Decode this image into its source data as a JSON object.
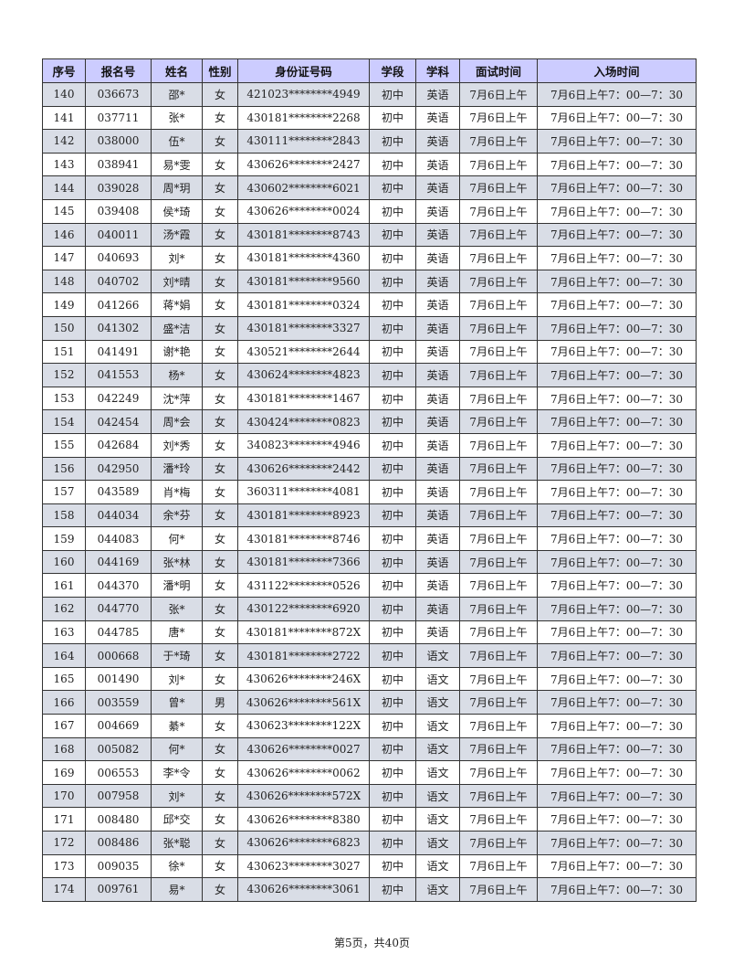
{
  "table": {
    "headers": [
      "序号",
      "报名号",
      "姓名",
      "性别",
      "身份证号码",
      "学段",
      "学科",
      "面试时间",
      "入场时间"
    ],
    "rows": [
      [
        "140",
        "036673",
        "邵*",
        "女",
        "421023********4949",
        "初中",
        "英语",
        "7月6日上午",
        "7月6日上午7：00—7：30"
      ],
      [
        "141",
        "037711",
        "张*",
        "女",
        "430181********2268",
        "初中",
        "英语",
        "7月6日上午",
        "7月6日上午7：00—7：30"
      ],
      [
        "142",
        "038000",
        "伍*",
        "女",
        "430111********2843",
        "初中",
        "英语",
        "7月6日上午",
        "7月6日上午7：00—7：30"
      ],
      [
        "143",
        "038941",
        "易*雯",
        "女",
        "430626********2427",
        "初中",
        "英语",
        "7月6日上午",
        "7月6日上午7：00—7：30"
      ],
      [
        "144",
        "039028",
        "周*玥",
        "女",
        "430602********6021",
        "初中",
        "英语",
        "7月6日上午",
        "7月6日上午7：00—7：30"
      ],
      [
        "145",
        "039408",
        "侯*琦",
        "女",
        "430626********0024",
        "初中",
        "英语",
        "7月6日上午",
        "7月6日上午7：00—7：30"
      ],
      [
        "146",
        "040011",
        "汤*霞",
        "女",
        "430181********8743",
        "初中",
        "英语",
        "7月6日上午",
        "7月6日上午7：00—7：30"
      ],
      [
        "147",
        "040693",
        "刘*",
        "女",
        "430181********4360",
        "初中",
        "英语",
        "7月6日上午",
        "7月6日上午7：00—7：30"
      ],
      [
        "148",
        "040702",
        "刘*晴",
        "女",
        "430181********9560",
        "初中",
        "英语",
        "7月6日上午",
        "7月6日上午7：00—7：30"
      ],
      [
        "149",
        "041266",
        "蒋*娟",
        "女",
        "430181********0324",
        "初中",
        "英语",
        "7月6日上午",
        "7月6日上午7：00—7：30"
      ],
      [
        "150",
        "041302",
        "盛*洁",
        "女",
        "430181********3327",
        "初中",
        "英语",
        "7月6日上午",
        "7月6日上午7：00—7：30"
      ],
      [
        "151",
        "041491",
        "谢*艳",
        "女",
        "430521********2644",
        "初中",
        "英语",
        "7月6日上午",
        "7月6日上午7：00—7：30"
      ],
      [
        "152",
        "041553",
        "杨*",
        "女",
        "430624********4823",
        "初中",
        "英语",
        "7月6日上午",
        "7月6日上午7：00—7：30"
      ],
      [
        "153",
        "042249",
        "沈*萍",
        "女",
        "430181********1467",
        "初中",
        "英语",
        "7月6日上午",
        "7月6日上午7：00—7：30"
      ],
      [
        "154",
        "042454",
        "周*会",
        "女",
        "430424********0823",
        "初中",
        "英语",
        "7月6日上午",
        "7月6日上午7：00—7：30"
      ],
      [
        "155",
        "042684",
        "刘*秀",
        "女",
        "340823********4946",
        "初中",
        "英语",
        "7月6日上午",
        "7月6日上午7：00—7：30"
      ],
      [
        "156",
        "042950",
        "潘*玲",
        "女",
        "430626********2442",
        "初中",
        "英语",
        "7月6日上午",
        "7月6日上午7：00—7：30"
      ],
      [
        "157",
        "043589",
        "肖*梅",
        "女",
        "360311********4081",
        "初中",
        "英语",
        "7月6日上午",
        "7月6日上午7：00—7：30"
      ],
      [
        "158",
        "044034",
        "余*芬",
        "女",
        "430181********8923",
        "初中",
        "英语",
        "7月6日上午",
        "7月6日上午7：00—7：30"
      ],
      [
        "159",
        "044083",
        "何*",
        "女",
        "430181********8746",
        "初中",
        "英语",
        "7月6日上午",
        "7月6日上午7：00—7：30"
      ],
      [
        "160",
        "044169",
        "张*林",
        "女",
        "430181********7366",
        "初中",
        "英语",
        "7月6日上午",
        "7月6日上午7：00—7：30"
      ],
      [
        "161",
        "044370",
        "潘*明",
        "女",
        "431122********0526",
        "初中",
        "英语",
        "7月6日上午",
        "7月6日上午7：00—7：30"
      ],
      [
        "162",
        "044770",
        "张*",
        "女",
        "430122********6920",
        "初中",
        "英语",
        "7月6日上午",
        "7月6日上午7：00—7：30"
      ],
      [
        "163",
        "044785",
        "唐*",
        "女",
        "430181********872X",
        "初中",
        "英语",
        "7月6日上午",
        "7月6日上午7：00—7：30"
      ],
      [
        "164",
        "000668",
        "于*琦",
        "女",
        "430181********2722",
        "初中",
        "语文",
        "7月6日上午",
        "7月6日上午7：00—7：30"
      ],
      [
        "165",
        "001490",
        "刘*",
        "女",
        "430626********246X",
        "初中",
        "语文",
        "7月6日上午",
        "7月6日上午7：00—7：30"
      ],
      [
        "166",
        "003559",
        "曾*",
        "男",
        "430626********561X",
        "初中",
        "语文",
        "7月6日上午",
        "7月6日上午7：00—7：30"
      ],
      [
        "167",
        "004669",
        "綦*",
        "女",
        "430623********122X",
        "初中",
        "语文",
        "7月6日上午",
        "7月6日上午7：00—7：30"
      ],
      [
        "168",
        "005082",
        "何*",
        "女",
        "430626********0027",
        "初中",
        "语文",
        "7月6日上午",
        "7月6日上午7：00—7：30"
      ],
      [
        "169",
        "006553",
        "李*令",
        "女",
        "430626********0062",
        "初中",
        "语文",
        "7月6日上午",
        "7月6日上午7：00—7：30"
      ],
      [
        "170",
        "007958",
        "刘*",
        "女",
        "430626********572X",
        "初中",
        "语文",
        "7月6日上午",
        "7月6日上午7：00—7：30"
      ],
      [
        "171",
        "008480",
        "邱*交",
        "女",
        "430626********8380",
        "初中",
        "语文",
        "7月6日上午",
        "7月6日上午7：00—7：30"
      ],
      [
        "172",
        "008486",
        "张*聪",
        "女",
        "430626********6823",
        "初中",
        "语文",
        "7月6日上午",
        "7月6日上午7：00—7：30"
      ],
      [
        "173",
        "009035",
        "徐*",
        "女",
        "430623********3027",
        "初中",
        "语文",
        "7月6日上午",
        "7月6日上午7：00—7：30"
      ],
      [
        "174",
        "009761",
        "易*",
        "女",
        "430626********3061",
        "初中",
        "语文",
        "7月6日上午",
        "7月6日上午7：00—7：30"
      ]
    ]
  },
  "footer": {
    "page_label": "第5页，共40页"
  },
  "colors": {
    "header_bg": "#ccccff",
    "alt_row_bg": "#d9dde6",
    "border": "#333333"
  }
}
